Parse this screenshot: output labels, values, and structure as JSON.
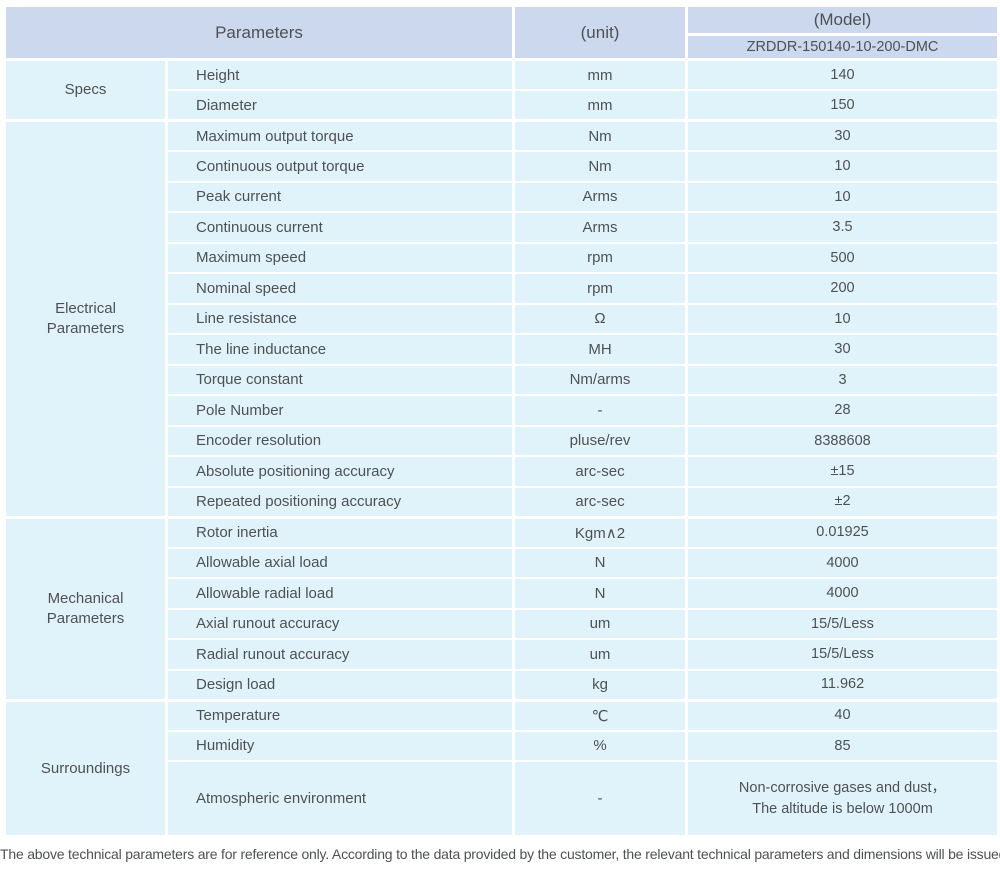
{
  "table": {
    "header": {
      "parameters": "Parameters",
      "unit": "(unit)",
      "model": "(Model)",
      "model_number": "ZRDDR-150140-10-200-DMC"
    },
    "groups": [
      {
        "category": "Specs",
        "rows": [
          {
            "name": "Height",
            "unit": "mm",
            "value": "140"
          },
          {
            "name": "Diameter",
            "unit": "mm",
            "value": "150"
          }
        ]
      },
      {
        "category": "Electrical Parameters",
        "rows": [
          {
            "name": "Maximum output torque",
            "unit": "Nm",
            "value": "30"
          },
          {
            "name": "Continuous output torque",
            "unit": "Nm",
            "value": "10"
          },
          {
            "name": "Peak current",
            "unit": "Arms",
            "value": "10"
          },
          {
            "name": "Continuous current",
            "unit": "Arms",
            "value": "3.5"
          },
          {
            "name": "Maximum speed",
            "unit": "rpm",
            "value": "500"
          },
          {
            "name": "Nominal speed",
            "unit": "rpm",
            "value": "200"
          },
          {
            "name": "Line resistance",
            "unit": "Ω",
            "value": "10"
          },
          {
            "name": "The line inductance",
            "unit": "MH",
            "value": "30"
          },
          {
            "name": "Torque constant",
            "unit": "Nm/arms",
            "value": "3"
          },
          {
            "name": "Pole Number",
            "unit": "-",
            "value": "28"
          },
          {
            "name": "Encoder resolution",
            "unit": "pluse/rev",
            "value": "8388608"
          },
          {
            "name": "Absolute positioning accuracy",
            "unit": "arc-sec",
            "value": "±15"
          },
          {
            "name": "Repeated positioning accuracy",
            "unit": "arc-sec",
            "value": "±2"
          }
        ]
      },
      {
        "category": "Mechanical Parameters",
        "rows": [
          {
            "name": "Rotor inertia",
            "unit": "Kgm∧2",
            "value": "0.01925"
          },
          {
            "name": "Allowable axial load",
            "unit": "N",
            "value": "4000"
          },
          {
            "name": "Allowable radial load",
            "unit": "N",
            "value": "4000"
          },
          {
            "name": "Axial runout accuracy",
            "unit": "um",
            "value": "15/5/Less"
          },
          {
            "name": "Radial runout accuracy",
            "unit": "um",
            "value": "15/5/Less"
          },
          {
            "name": "Design load",
            "unit": "kg",
            "value": "11.962"
          }
        ]
      },
      {
        "category": "Surroundings",
        "rows": [
          {
            "name": "Temperature",
            "unit": "℃",
            "value": "40"
          },
          {
            "name": "Humidity",
            "unit": "%",
            "value": "85"
          },
          {
            "name": "Atmospheric environment",
            "unit": "-",
            "value": "Non-corrosive gases and dust，\nThe altitude is below 1000m"
          }
        ]
      }
    ]
  },
  "footer": {
    "note": "The above technical parameters are for reference only. According to the data provided by the customer, the relevant technical parameters and dimensions will be issued."
  },
  "colors": {
    "header_bg": "#ccd8ee",
    "body_bg": "#e1f3fa",
    "text": "#4e5154"
  }
}
